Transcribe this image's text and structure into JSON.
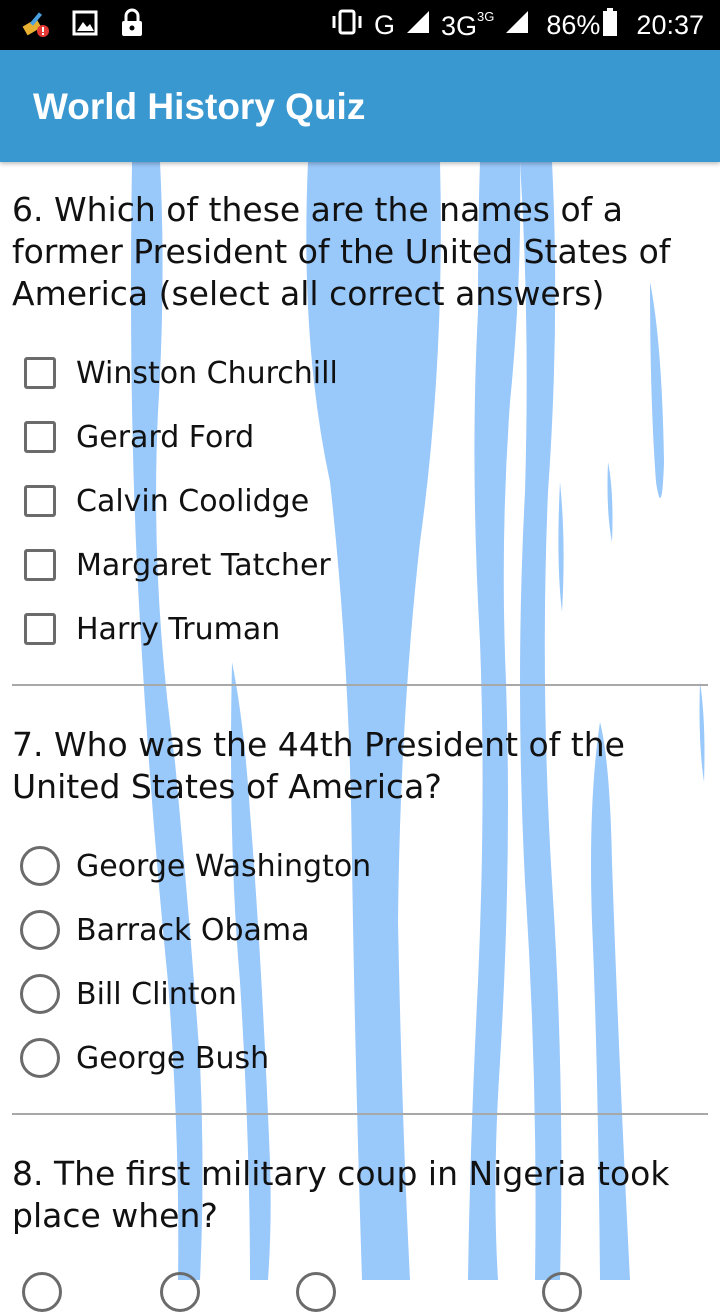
{
  "status_bar": {
    "network_label": "G",
    "network2_label": "3G",
    "network2_sup": "3G",
    "battery": "86%",
    "time": "20:37"
  },
  "app_bar": {
    "title": "World History Quiz"
  },
  "questions": [
    {
      "text": "6. Which of these are the names of a former President of the United States of America (select all correct answers)",
      "type": "checkbox",
      "options": [
        "Winston Churchill",
        "Gerard Ford",
        "Calvin Coolidge",
        "Margaret Tatcher",
        "Harry Truman"
      ]
    },
    {
      "text": "7. Who was the 44th President of the United States of America?",
      "type": "radio",
      "options": [
        "George Washington",
        "Barrack Obama",
        "Bill Clinton",
        "George Bush"
      ]
    },
    {
      "text": "8. The first military coup in Nigeria took place when?",
      "type": "radio",
      "options": []
    }
  ],
  "colors": {
    "app_bar": "#3a98d0",
    "status_bar": "#000000",
    "streaks": "#99c8fb",
    "control_border": "#6b6b6b",
    "divider": "#a8a8a8"
  }
}
